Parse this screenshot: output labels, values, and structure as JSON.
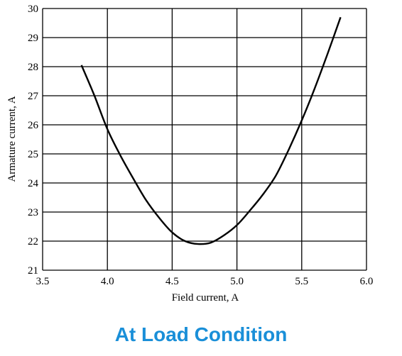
{
  "caption": "At Load Condition",
  "colors": {
    "caption": "#1a8fd8",
    "line": "#000000",
    "grid": "#000000"
  },
  "chart_data": {
    "type": "line",
    "title": "",
    "xlabel": "Field current, A",
    "ylabel": "Armature current, A",
    "xlim": [
      3.5,
      6.0
    ],
    "ylim": [
      21,
      30
    ],
    "xticks": [
      "3.5",
      "4.0",
      "4.5",
      "5.0",
      "5.5",
      "6.0"
    ],
    "yticks": [
      "21",
      "22",
      "23",
      "24",
      "25",
      "26",
      "27",
      "28",
      "29",
      "30"
    ],
    "grid": true,
    "series": [
      {
        "x": [
          3.8,
          3.9,
          4.0,
          4.1,
          4.2,
          4.3,
          4.4,
          4.5,
          4.6,
          4.7,
          4.8,
          4.9,
          5.0,
          5.1,
          5.2,
          5.3,
          5.4,
          5.5,
          5.6,
          5.7,
          5.8
        ],
        "y": [
          28.05,
          27.0,
          25.85,
          24.95,
          24.15,
          23.4,
          22.8,
          22.3,
          22.0,
          21.9,
          21.95,
          22.2,
          22.55,
          23.05,
          23.6,
          24.25,
          25.15,
          26.15,
          27.25,
          28.45,
          29.7
        ]
      }
    ]
  }
}
